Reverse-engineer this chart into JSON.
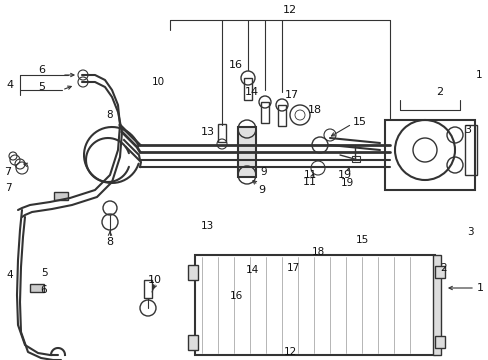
{
  "bg_color": "#ffffff",
  "line_color": "#333333",
  "label_color": "#111111",
  "figsize": [
    4.89,
    3.6
  ],
  "dpi": 100,
  "xlim": [
    0,
    489
  ],
  "ylim": [
    0,
    360
  ]
}
